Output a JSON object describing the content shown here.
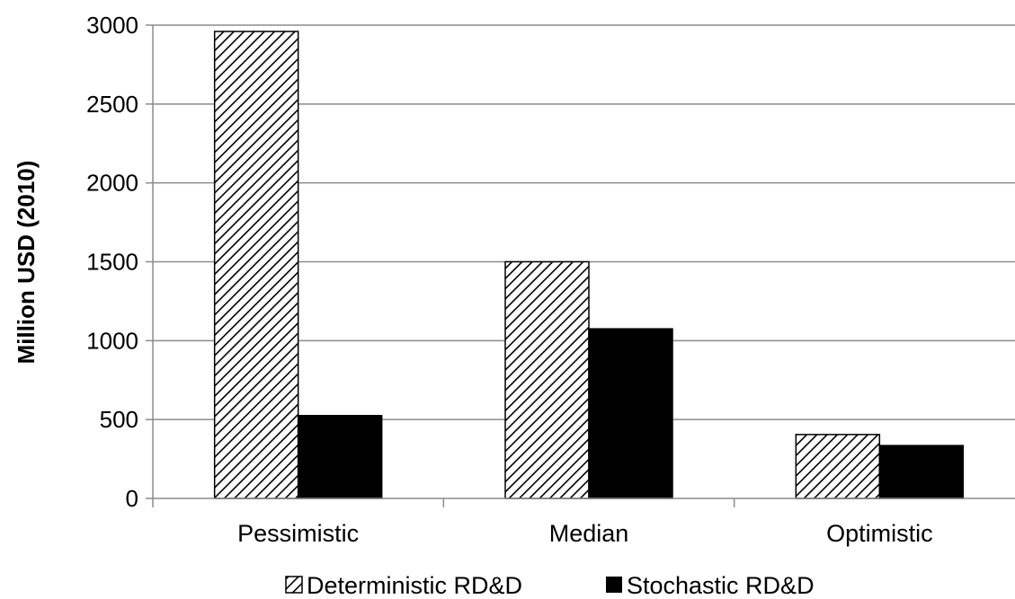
{
  "chart_data": {
    "type": "bar",
    "title": "",
    "xlabel": "",
    "ylabel": "Million USD (2010)",
    "categories": [
      "Pessimistic",
      "Median",
      "Optimistic"
    ],
    "series": [
      {
        "name": "Deterministic RD&D",
        "values": [
          2960,
          1500,
          405
        ],
        "fill": "hatched"
      },
      {
        "name": "Stochastic RD&D",
        "values": [
          525,
          1075,
          335
        ],
        "fill": "#000000"
      }
    ],
    "ylim": [
      0,
      3000
    ],
    "yticks": [
      0,
      500,
      1000,
      1500,
      2000,
      2500,
      3000
    ],
    "grid": true,
    "legend": "bottom"
  }
}
